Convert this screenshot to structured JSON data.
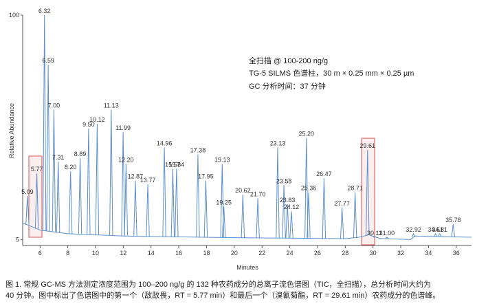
{
  "chart_data": {
    "type": "line",
    "x_label": "Minutes",
    "y_label": "Relative Abundance",
    "annotations": [
      "全扫描 @ 100-200 ng/g",
      "TG-5 SILMS 色谱柱，30 m × 0.25 mm × 0.25 µm",
      "GC 分析时间：37 分钟"
    ],
    "xlim": [
      4.75,
      37.1
    ],
    "ylim": [
      2.5,
      100
    ],
    "xticks": [
      6,
      8,
      10,
      12,
      14,
      16,
      18,
      20,
      22,
      24,
      26,
      28,
      30,
      32,
      34,
      36
    ],
    "yticks": [
      5,
      100
    ],
    "color": "#5b8fcb",
    "baseline": {
      "x": [
        4.75,
        5.2,
        6.0,
        8.0,
        12.0,
        20.0,
        28.0,
        29.0,
        29.7,
        30.5,
        32.7,
        33.0,
        37.1
      ],
      "values": [
        12,
        11,
        9,
        7.5,
        6.5,
        5.8,
        5.4,
        6,
        7,
        5.5,
        5,
        6.5,
        6
      ]
    },
    "peaks": {
      "x_labels": [
        "5.09",
        "5.77",
        "6.32",
        "6.59",
        "7.00",
        "7.31",
        "8.20",
        "8.89",
        "9.50",
        "10.12",
        "11.13",
        "11.99",
        "12.20",
        "12.87",
        "13.77",
        "14.96",
        "15.57",
        "15.84",
        "17.38",
        "17.95",
        "19.13",
        "19.25",
        "20.62",
        "21.70",
        "23.13",
        "23.58",
        "23.83",
        "24.12",
        "25.20",
        "25.36",
        "26.47",
        "27.77",
        "28.71",
        "29.61",
        "30.11",
        "31.00",
        "32.92",
        "34.51",
        "34.81",
        "35.78"
      ],
      "x": [
        5.09,
        5.77,
        6.32,
        6.59,
        7.0,
        7.31,
        8.2,
        8.89,
        9.5,
        10.12,
        11.13,
        11.99,
        12.2,
        12.87,
        13.77,
        14.96,
        15.57,
        15.84,
        17.38,
        17.95,
        19.13,
        19.25,
        20.62,
        21.7,
        23.13,
        23.58,
        23.83,
        24.12,
        25.2,
        25.36,
        26.47,
        27.77,
        28.71,
        29.61,
        30.11,
        31.0,
        32.92,
        34.51,
        34.81,
        35.78
      ],
      "values": [
        23.5,
        33,
        100,
        79,
        60,
        38,
        34,
        39.5,
        52,
        54,
        60,
        50.5,
        37,
        30,
        28.4,
        44,
        35,
        35,
        41,
        30,
        37,
        19,
        24,
        22.5,
        44,
        28,
        20,
        17,
        48,
        25,
        31,
        18.5,
        25,
        43,
        6,
        6,
        7.5,
        7.5,
        7.5,
        11.5
      ]
    },
    "caption": [
      "图 1. 常规 GC-MS 方法测定浓度范围为 100–200 ng/g 的 132 种农药成分的总离子流色谱图（TIC，全扫描），总分析时间大约为",
      "40 分钟。图中标出了色谱图中的第一个（敌敌畏，RT = 5.77 min）和最后一个（溴氰菊酯，RT = 29.61 min）农药成分的色谱峰。"
    ]
  }
}
